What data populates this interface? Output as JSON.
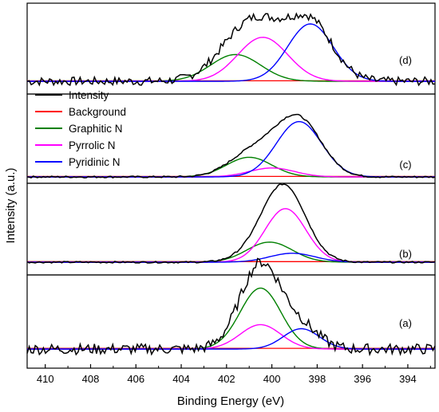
{
  "chart_data": {
    "type": "line",
    "xlabel": "Binding Energy (eV)",
    "ylabel": "Intensity (a.u.)",
    "x_reversed": true,
    "xlim": [
      410.8,
      392.8
    ],
    "x_ticks": [
      "410",
      "408",
      "406",
      "404",
      "402",
      "400",
      "398",
      "396",
      "394"
    ],
    "x_tick_values": [
      410,
      408,
      406,
      404,
      402,
      400,
      398,
      396,
      394
    ],
    "grid": false,
    "legend_position": "left, between panels (d) and (c)",
    "legend": [
      {
        "name": "Intensity",
        "color": "#000000"
      },
      {
        "name": "Background",
        "color": "#ff0000"
      },
      {
        "name": "Graphitic N",
        "color": "#008000"
      },
      {
        "name": "Pyrrolic N",
        "color": "#ff00ff"
      },
      {
        "name": "Pyridinic N",
        "color": "#0000ff"
      }
    ],
    "panels": [
      {
        "label": "(d)",
        "peaks": {
          "graphitic": {
            "center": 401.6,
            "height": 0.28,
            "width": 1.1
          },
          "pyrrolic": {
            "center": 400.4,
            "height": 0.46,
            "width": 1.1
          },
          "pyridinic": {
            "center": 398.3,
            "height": 0.6,
            "width": 1.0
          }
        },
        "noise": 0.09
      },
      {
        "label": "(c)",
        "peaks": {
          "graphitic": {
            "center": 401.0,
            "height": 0.22,
            "width": 1.0
          },
          "pyrrolic": {
            "center": 400.0,
            "height": 0.1,
            "width": 1.0
          },
          "pyridinic": {
            "center": 398.8,
            "height": 0.62,
            "width": 1.0
          }
        },
        "noise": 0.02
      },
      {
        "label": "(b)",
        "peaks": {
          "graphitic": {
            "center": 400.1,
            "height": 0.18,
            "width": 1.0
          },
          "pyrrolic": {
            "center": 399.4,
            "height": 0.48,
            "width": 0.9
          },
          "pyridinic": {
            "center": 399.1,
            "height": 0.08,
            "width": 1.0
          }
        },
        "noise": 0.015
      },
      {
        "label": "(a)",
        "peaks": {
          "graphitic": {
            "center": 400.5,
            "height": 0.45,
            "width": 0.9
          },
          "pyrrolic": {
            "center": 400.5,
            "height": 0.18,
            "width": 0.9
          },
          "pyridinic": {
            "center": 398.7,
            "height": 0.15,
            "width": 0.8
          }
        },
        "noise": 0.08
      }
    ]
  },
  "colors": {
    "intensity": "#000000",
    "background": "#ff0000",
    "graphitic": "#008000",
    "pyrrolic": "#ff00ff",
    "pyridinic": "#0000ff"
  }
}
